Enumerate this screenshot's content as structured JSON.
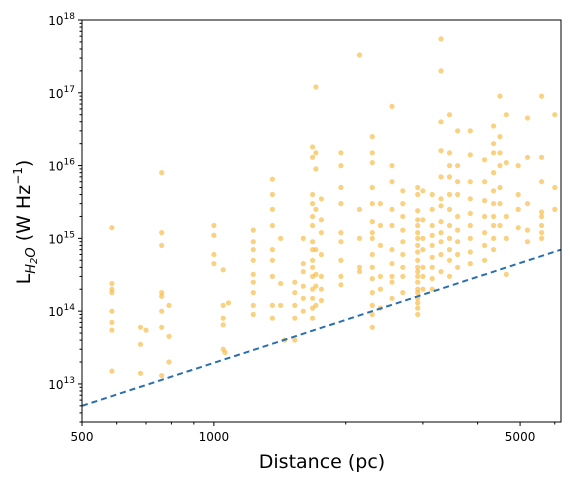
{
  "chart_data": {
    "type": "scatter",
    "xlabel": "Distance (pc)",
    "ylabel_main": "L",
    "ylabel_sub": "H",
    "ylabel_subsub": "2",
    "ylabel_subtail": "O",
    "ylabel_unit": " (W Hz",
    "ylabel_exp": "−1",
    "ylabel_close": ")",
    "x_scale": "log",
    "y_scale": "log",
    "xlim": [
      500,
      6200
    ],
    "ylim": [
      3000000000000.0,
      1e+18
    ],
    "x_ticks": [
      {
        "value": 500,
        "label": "500"
      },
      {
        "value": 1000,
        "label": "1000"
      },
      {
        "value": 5000,
        "label": "5000"
      }
    ],
    "y_ticks": [
      {
        "value": 10000000000000.0,
        "base": "10",
        "exp": "13"
      },
      {
        "value": 100000000000000.0,
        "base": "10",
        "exp": "14"
      },
      {
        "value": 1000000000000000.0,
        "base": "10",
        "exp": "15"
      },
      {
        "value": 1e+16,
        "base": "10",
        "exp": "16"
      },
      {
        "value": 1e+17,
        "base": "10",
        "exp": "17"
      },
      {
        "value": 1e+18,
        "base": "10",
        "exp": "18"
      }
    ],
    "threshold_line": {
      "color": "#2a6fae",
      "style": "dashed",
      "points": [
        [
          500,
          5000000000000.0
        ],
        [
          6200,
          700000000000000.0
        ]
      ]
    },
    "point_color": "#f5b32c",
    "grid": false,
    "points": [
      [
        585,
        1400000000000000.0
      ],
      [
        585,
        240000000000000.0
      ],
      [
        585,
        200000000000000.0
      ],
      [
        585,
        180000000000000.0
      ],
      [
        585,
        100000000000000.0
      ],
      [
        585,
        70000000000000.0
      ],
      [
        585,
        55000000000000.0
      ],
      [
        585,
        15000000000000.0
      ],
      [
        680,
        60000000000000.0
      ],
      [
        680,
        35000000000000.0
      ],
      [
        680,
        14000000000000.0
      ],
      [
        700,
        55000000000000.0
      ],
      [
        760,
        8000000000000000.0
      ],
      [
        760,
        1200000000000000.0
      ],
      [
        760,
        800000000000000.0
      ],
      [
        760,
        180000000000000.0
      ],
      [
        760,
        160000000000000.0
      ],
      [
        760,
        100000000000000.0
      ],
      [
        760,
        60000000000000.0
      ],
      [
        760,
        13000000000000.0
      ],
      [
        790,
        120000000000000.0
      ],
      [
        790,
        45000000000000.0
      ],
      [
        790,
        20000000000000.0
      ],
      [
        1000,
        1500000000000000.0
      ],
      [
        1000,
        1100000000000000.0
      ],
      [
        1000,
        600000000000000.0
      ],
      [
        1000,
        450000000000000.0
      ],
      [
        1050,
        370000000000000.0
      ],
      [
        1050,
        120000000000000.0
      ],
      [
        1050,
        80000000000000.0
      ],
      [
        1050,
        65000000000000.0
      ],
      [
        1050,
        30000000000000.0
      ],
      [
        1060,
        27000000000000.0
      ],
      [
        1080,
        130000000000000.0
      ],
      [
        1230,
        1300000000000000.0
      ],
      [
        1230,
        900000000000000.0
      ],
      [
        1230,
        700000000000000.0
      ],
      [
        1230,
        500000000000000.0
      ],
      [
        1230,
        320000000000000.0
      ],
      [
        1230,
        250000000000000.0
      ],
      [
        1230,
        180000000000000.0
      ],
      [
        1230,
        120000000000000.0
      ],
      [
        1230,
        90000000000000.0
      ],
      [
        1360,
        6500000000000000.0
      ],
      [
        1360,
        4000000000000000.0
      ],
      [
        1360,
        2500000000000000.0
      ],
      [
        1360,
        1500000000000000.0
      ],
      [
        1360,
        700000000000000.0
      ],
      [
        1360,
        500000000000000.0
      ],
      [
        1360,
        300000000000000.0
      ],
      [
        1360,
        120000000000000.0
      ],
      [
        1360,
        80000000000000.0
      ],
      [
        1420,
        1000000000000000.0
      ],
      [
        1420,
        240000000000000.0
      ],
      [
        1420,
        120000000000000.0
      ],
      [
        1450,
        40000000000000.0
      ],
      [
        1530,
        250000000000000.0
      ],
      [
        1530,
        180000000000000.0
      ],
      [
        1530,
        120000000000000.0
      ],
      [
        1530,
        80000000000000.0
      ],
      [
        1530,
        40000000000000.0
      ],
      [
        1600,
        1000000000000000.0
      ],
      [
        1600,
        450000000000000.0
      ],
      [
        1600,
        350000000000000.0
      ],
      [
        1600,
        220000000000000.0
      ],
      [
        1600,
        150000000000000.0
      ],
      [
        1600,
        100000000000000.0
      ],
      [
        1680,
        1.8e+16
      ],
      [
        1680,
        1.3e+16
      ],
      [
        1680,
        4000000000000000.0
      ],
      [
        1680,
        3000000000000000.0
      ],
      [
        1680,
        2000000000000000.0
      ],
      [
        1680,
        1500000000000000.0
      ],
      [
        1680,
        900000000000000.0
      ],
      [
        1680,
        700000000000000.0
      ],
      [
        1680,
        500000000000000.0
      ],
      [
        1680,
        400000000000000.0
      ],
      [
        1680,
        300000000000000.0
      ],
      [
        1680,
        200000000000000.0
      ],
      [
        1680,
        150000000000000.0
      ],
      [
        1680,
        110000000000000.0
      ],
      [
        1680,
        80000000000000.0
      ],
      [
        1710,
        1.2e+17
      ],
      [
        1710,
        1.5e+16
      ],
      [
        1710,
        9000000000000000.0
      ],
      [
        1710,
        2500000000000000.0
      ],
      [
        1710,
        700000000000000.0
      ],
      [
        1710,
        320000000000000.0
      ],
      [
        1710,
        220000000000000.0
      ],
      [
        1710,
        120000000000000.0
      ],
      [
        1760,
        3500000000000000.0
      ],
      [
        1760,
        1800000000000000.0
      ],
      [
        1760,
        1200000000000000.0
      ],
      [
        1760,
        600000000000000.0
      ],
      [
        1760,
        300000000000000.0
      ],
      [
        1760,
        200000000000000.0
      ],
      [
        1760,
        140000000000000.0
      ],
      [
        1950,
        1.5e+16
      ],
      [
        1950,
        1e+16
      ],
      [
        1950,
        5000000000000000.0
      ],
      [
        1950,
        3000000000000000.0
      ],
      [
        1950,
        1200000000000000.0
      ],
      [
        1950,
        900000000000000.0
      ],
      [
        1950,
        500000000000000.0
      ],
      [
        1950,
        300000000000000.0
      ],
      [
        1950,
        230000000000000.0
      ],
      [
        2150,
        3.3e+17
      ],
      [
        2150,
        2500000000000000.0
      ],
      [
        2150,
        1000000000000000.0
      ],
      [
        2150,
        400000000000000.0
      ],
      [
        2150,
        350000000000000.0
      ],
      [
        2300,
        2.5e+16
      ],
      [
        2300,
        1.5e+16
      ],
      [
        2300,
        1.1e+16
      ],
      [
        2300,
        5000000000000000.0
      ],
      [
        2300,
        3000000000000000.0
      ],
      [
        2300,
        1700000000000000.0
      ],
      [
        2300,
        1200000000000000.0
      ],
      [
        2300,
        1000000000000000.0
      ],
      [
        2300,
        600000000000000.0
      ],
      [
        2300,
        400000000000000.0
      ],
      [
        2300,
        280000000000000.0
      ],
      [
        2300,
        180000000000000.0
      ],
      [
        2300,
        120000000000000.0
      ],
      [
        2300,
        90000000000000.0
      ],
      [
        2300,
        60000000000000.0
      ],
      [
        2400,
        3000000000000000.0
      ],
      [
        2400,
        1500000000000000.0
      ],
      [
        2400,
        800000000000000.0
      ],
      [
        2400,
        300000000000000.0
      ],
      [
        2400,
        200000000000000.0
      ],
      [
        2400,
        110000000000000.0
      ],
      [
        2550,
        6.5e+16
      ],
      [
        2550,
        1e+16
      ],
      [
        2550,
        6000000000000000.0
      ],
      [
        2550,
        2500000000000000.0
      ],
      [
        2550,
        1500000000000000.0
      ],
      [
        2550,
        700000000000000.0
      ],
      [
        2550,
        450000000000000.0
      ],
      [
        2550,
        300000000000000.0
      ],
      [
        2550,
        250000000000000.0
      ],
      [
        2550,
        150000000000000.0
      ],
      [
        2700,
        4500000000000000.0
      ],
      [
        2700,
        3000000000000000.0
      ],
      [
        2700,
        2000000000000000.0
      ],
      [
        2700,
        1300000000000000.0
      ],
      [
        2700,
        900000000000000.0
      ],
      [
        2700,
        600000000000000.0
      ],
      [
        2700,
        400000000000000.0
      ],
      [
        2700,
        300000000000000.0
      ],
      [
        2700,
        180000000000000.0
      ],
      [
        2920,
        5000000000000000.0
      ],
      [
        2920,
        4000000000000000.0
      ],
      [
        2920,
        2400000000000000.0
      ],
      [
        2920,
        1800000000000000.0
      ],
      [
        2920,
        1500000000000000.0
      ],
      [
        2920,
        1200000000000000.0
      ],
      [
        2920,
        1000000000000000.0
      ],
      [
        2920,
        800000000000000.0
      ],
      [
        2920,
        650000000000000.0
      ],
      [
        2920,
        500000000000000.0
      ],
      [
        2920,
        400000000000000.0
      ],
      [
        2920,
        350000000000000.0
      ],
      [
        2920,
        300000000000000.0
      ],
      [
        2920,
        250000000000000.0
      ],
      [
        2920,
        200000000000000.0
      ],
      [
        2920,
        180000000000000.0
      ],
      [
        2920,
        150000000000000.0
      ],
      [
        2920,
        130000000000000.0
      ],
      [
        2920,
        110000000000000.0
      ],
      [
        2920,
        90000000000000.0
      ],
      [
        3000,
        4500000000000000.0
      ],
      [
        3000,
        1800000000000000.0
      ],
      [
        3000,
        1000000000000000.0
      ],
      [
        3000,
        700000000000000.0
      ],
      [
        3000,
        400000000000000.0
      ],
      [
        3000,
        300000000000000.0
      ],
      [
        3000,
        200000000000000.0
      ],
      [
        3150,
        4000000000000000.0
      ],
      [
        3150,
        2500000000000000.0
      ],
      [
        3150,
        1500000000000000.0
      ],
      [
        3150,
        1100000000000000.0
      ],
      [
        3150,
        800000000000000.0
      ],
      [
        3150,
        550000000000000.0
      ],
      [
        3150,
        400000000000000.0
      ],
      [
        3150,
        280000000000000.0
      ],
      [
        3150,
        200000000000000.0
      ],
      [
        3300,
        5.5e+17
      ],
      [
        3300,
        2e+17
      ],
      [
        3300,
        4e+16
      ],
      [
        3300,
        1.6e+16
      ],
      [
        3300,
        7000000000000000.0
      ],
      [
        3300,
        3500000000000000.0
      ],
      [
        3300,
        2800000000000000.0
      ],
      [
        3300,
        1700000000000000.0
      ],
      [
        3300,
        1200000000000000.0
      ],
      [
        3300,
        900000000000000.0
      ],
      [
        3300,
        600000000000000.0
      ],
      [
        3300,
        350000000000000.0
      ],
      [
        3450,
        5e+16
      ],
      [
        3450,
        1.5e+16
      ],
      [
        3450,
        1e+16
      ],
      [
        3450,
        7000000000000000.0
      ],
      [
        3450,
        4000000000000000.0
      ],
      [
        3450,
        2500000000000000.0
      ],
      [
        3450,
        1500000000000000.0
      ],
      [
        3450,
        1000000000000000.0
      ],
      [
        3450,
        700000000000000.0
      ],
      [
        3450,
        500000000000000.0
      ],
      [
        3450,
        300000000000000.0
      ],
      [
        3600,
        3e+16
      ],
      [
        3600,
        1e+16
      ],
      [
        3600,
        6000000000000000.0
      ],
      [
        3600,
        4000000000000000.0
      ],
      [
        3600,
        2000000000000000.0
      ],
      [
        3600,
        1300000000000000.0
      ],
      [
        3600,
        900000000000000.0
      ],
      [
        3600,
        600000000000000.0
      ],
      [
        3600,
        400000000000000.0
      ],
      [
        3850,
        3e+16
      ],
      [
        3850,
        1.4e+16
      ],
      [
        3850,
        6000000000000000.0
      ],
      [
        3850,
        3500000000000000.0
      ],
      [
        3850,
        2200000000000000.0
      ],
      [
        3850,
        1500000000000000.0
      ],
      [
        3850,
        1000000000000000.0
      ],
      [
        3850,
        650000000000000.0
      ],
      [
        3850,
        450000000000000.0
      ],
      [
        4150,
        1.2e+16
      ],
      [
        4150,
        6000000000000000.0
      ],
      [
        4150,
        3300000000000000.0
      ],
      [
        4150,
        2000000000000000.0
      ],
      [
        4150,
        1200000000000000.0
      ],
      [
        4150,
        800000000000000.0
      ],
      [
        4150,
        500000000000000.0
      ],
      [
        4350,
        3.5e+16
      ],
      [
        4350,
        2e+16
      ],
      [
        4350,
        1.5e+16
      ],
      [
        4350,
        8000000000000000.0
      ],
      [
        4350,
        4500000000000000.0
      ],
      [
        4350,
        3000000000000000.0
      ],
      [
        4350,
        2000000000000000.0
      ],
      [
        4350,
        1500000000000000.0
      ],
      [
        4350,
        1000000000000000.0
      ],
      [
        4350,
        700000000000000.0
      ],
      [
        4500,
        9e+16
      ],
      [
        4500,
        2.5e+16
      ],
      [
        4500,
        1.5e+16
      ],
      [
        4500,
        1e+16
      ],
      [
        4500,
        5000000000000000.0
      ],
      [
        4500,
        3000000000000000.0
      ],
      [
        4500,
        1500000000000000.0
      ],
      [
        4650,
        5e+16
      ],
      [
        4650,
        1.1e+16
      ],
      [
        4650,
        2000000000000000.0
      ],
      [
        4650,
        1000000000000000.0
      ],
      [
        4650,
        320000000000000.0
      ],
      [
        4950,
        1e+16
      ],
      [
        4950,
        4000000000000000.0
      ],
      [
        4950,
        2500000000000000.0
      ],
      [
        4950,
        1400000000000000.0
      ],
      [
        5200,
        4.5e+16
      ],
      [
        5200,
        1.3e+16
      ],
      [
        5200,
        3000000000000000.0
      ],
      [
        5200,
        1300000000000000.0
      ],
      [
        5200,
        900000000000000.0
      ],
      [
        5600,
        9e+16
      ],
      [
        5600,
        1.3e+16
      ],
      [
        5600,
        6000000000000000.0
      ],
      [
        5600,
        2300000000000000.0
      ],
      [
        5600,
        2000000000000000.0
      ],
      [
        5600,
        1500000000000000.0
      ],
      [
        5600,
        1200000000000000.0
      ],
      [
        5600,
        1000000000000000.0
      ],
      [
        6000,
        5e+16
      ],
      [
        6000,
        5000000000000000.0
      ],
      [
        6000,
        2500000000000000.0
      ]
    ]
  }
}
